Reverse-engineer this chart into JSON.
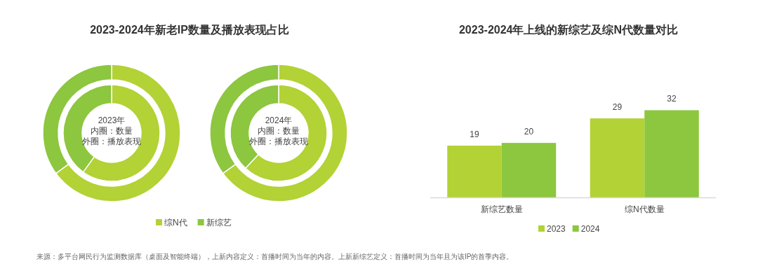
{
  "chart_data": [
    {
      "type": "donut",
      "title": "2023-2024年新老IP数量及播放表现占比",
      "categories": [
        "综N代",
        "新综艺"
      ],
      "colors": [
        "#b2d235",
        "#8dc63f"
      ],
      "legend": "bottom",
      "annotations": [
        "2023年",
        "内圈：数量",
        "外圈：播放表现",
        "2024年",
        "内圈：数量",
        "外圈：播放表现",
        "来源：多平台网民行为监测数据库（桌面及智能终端），上新内容定义：首播时间为当年的内容。上新新综艺定义：首播时间为当年且为该IP的首季内容。"
      ],
      "series": [
        {
          "values": [
            60,
            40
          ]
        },
        {
          "values": [
            65,
            35
          ]
        },
        {
          "values": [
            62,
            38
          ]
        },
        {
          "values": [
            65,
            35
          ]
        }
      ]
    },
    {
      "type": "bar",
      "title": "2023-2024年上线的新综艺及综N代数量对比",
      "categories": [
        "新综艺数量",
        "综N代数量"
      ],
      "data_labels": true,
      "legend": "bottom",
      "series": [
        {
          "name": "2023",
          "color": "#b2d235",
          "values": [
            19,
            29
          ]
        },
        {
          "name": "2024",
          "color": "#8dc63f",
          "values": [
            20,
            32
          ]
        }
      ]
    }
  ]
}
